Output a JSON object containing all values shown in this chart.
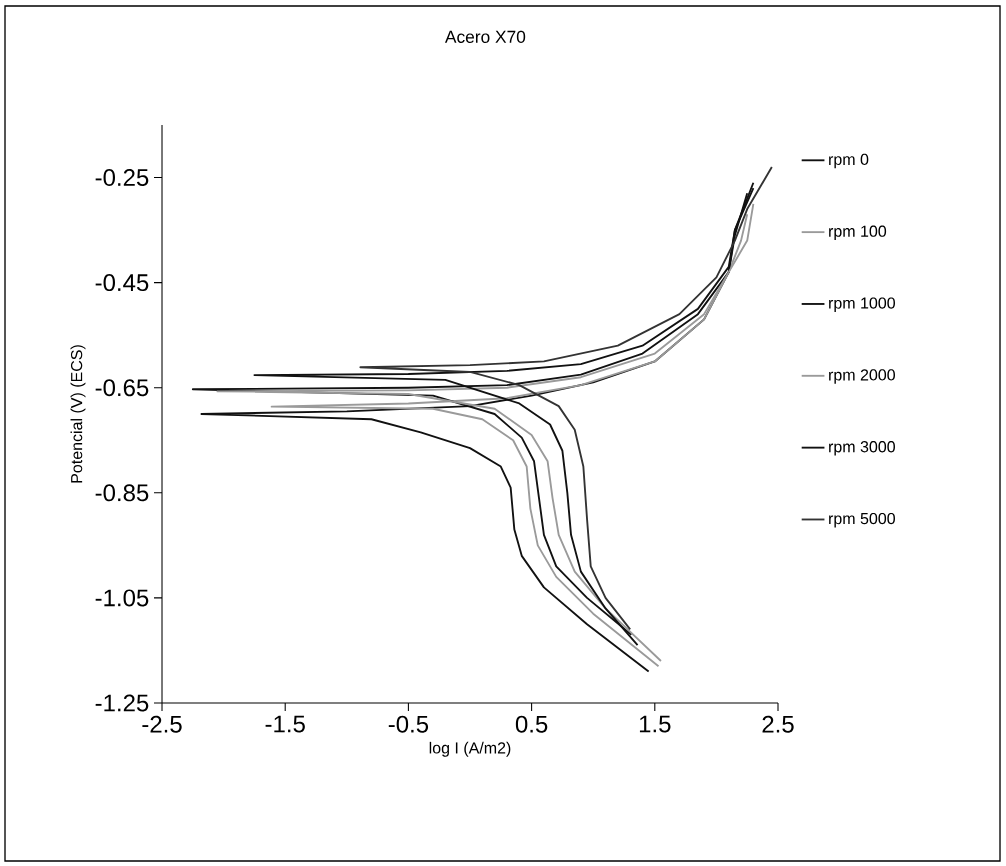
{
  "chart_data": {
    "type": "line",
    "title": "Acero X70",
    "xlabel": "log I (A/m2)",
    "ylabel": "Potencial (V) (ECS)",
    "xlim": [
      -2.5,
      2.5
    ],
    "ylim": [
      -1.25,
      -0.15
    ],
    "xticks": [
      -2.5,
      -1.5,
      -0.5,
      0.5,
      1.5,
      2.5
    ],
    "yticks": [
      -1.25,
      -1.05,
      -0.85,
      -0.65,
      -0.45,
      -0.25
    ],
    "legend": "right",
    "marker": "none",
    "line_style": "solid",
    "series": [
      {
        "name": "rpm 0",
        "color": "#111111",
        "x": [
          1.45,
          0.95,
          0.6,
          0.42,
          0.36,
          0.33,
          0.25,
          0.0,
          -0.4,
          -0.8,
          -2.18,
          -1.0,
          0.0,
          0.5,
          1.0,
          1.5,
          1.9,
          2.1,
          2.15,
          2.25
        ],
        "values": [
          -1.19,
          -1.1,
          -1.03,
          -0.97,
          -0.92,
          -0.84,
          -0.8,
          -0.765,
          -0.735,
          -0.71,
          -0.7,
          -0.695,
          -0.685,
          -0.665,
          -0.64,
          -0.6,
          -0.52,
          -0.43,
          -0.36,
          -0.28
        ]
      },
      {
        "name": "rpm 100",
        "color": "#9a9a9a",
        "x": [
          1.53,
          1.0,
          0.7,
          0.55,
          0.49,
          0.46,
          0.35,
          0.1,
          -0.3,
          -1.61,
          -0.5,
          0.3,
          0.9,
          1.5,
          1.9,
          2.1,
          2.2,
          2.25
        ],
        "values": [
          -1.18,
          -1.08,
          -1.01,
          -0.95,
          -0.88,
          -0.8,
          -0.75,
          -0.71,
          -0.69,
          -0.686,
          -0.68,
          -0.67,
          -0.645,
          -0.6,
          -0.52,
          -0.43,
          -0.37,
          -0.32
        ]
      },
      {
        "name": "rpm 1000",
        "color": "#111111",
        "x": [
          1.31,
          0.95,
          0.7,
          0.6,
          0.56,
          0.52,
          0.42,
          0.2,
          -0.3,
          -2.25,
          -0.5,
          0.3,
          0.9,
          1.4,
          1.85,
          2.1,
          2.15,
          2.3
        ],
        "values": [
          -1.12,
          -1.05,
          -0.99,
          -0.93,
          -0.86,
          -0.79,
          -0.745,
          -0.7,
          -0.665,
          -0.653,
          -0.65,
          -0.645,
          -0.625,
          -0.585,
          -0.51,
          -0.43,
          -0.35,
          -0.26
        ]
      },
      {
        "name": "rpm 2000",
        "color": "#9a9a9a",
        "x": [
          1.55,
          1.1,
          0.85,
          0.72,
          0.67,
          0.63,
          0.5,
          0.2,
          -0.5,
          -2.05,
          -0.5,
          0.3,
          0.9,
          1.5,
          1.9,
          2.1,
          2.25,
          2.3
        ],
        "values": [
          -1.17,
          -1.07,
          -1.0,
          -0.93,
          -0.86,
          -0.79,
          -0.74,
          -0.69,
          -0.662,
          -0.657,
          -0.655,
          -0.65,
          -0.63,
          -0.585,
          -0.51,
          -0.43,
          -0.37,
          -0.3
        ]
      },
      {
        "name": "rpm 3000",
        "color": "#111111",
        "x": [
          1.36,
          1.1,
          0.9,
          0.82,
          0.79,
          0.75,
          0.65,
          0.4,
          -0.2,
          -1.75,
          -0.5,
          0.3,
          0.9,
          1.4,
          1.85,
          2.1,
          2.15,
          2.3
        ],
        "values": [
          -1.14,
          -1.07,
          -1.0,
          -0.93,
          -0.85,
          -0.77,
          -0.72,
          -0.68,
          -0.635,
          -0.626,
          -0.624,
          -0.618,
          -0.605,
          -0.57,
          -0.5,
          -0.42,
          -0.35,
          -0.27
        ]
      },
      {
        "name": "rpm 5000",
        "color": "#333333",
        "x": [
          1.3,
          1.1,
          0.98,
          0.95,
          0.92,
          0.85,
          0.72,
          0.4,
          0.0,
          -0.89,
          0.0,
          0.6,
          1.2,
          1.7,
          2.0,
          2.15,
          2.25,
          2.45
        ],
        "values": [
          -1.11,
          -1.05,
          -0.99,
          -0.9,
          -0.8,
          -0.73,
          -0.685,
          -0.645,
          -0.62,
          -0.611,
          -0.607,
          -0.6,
          -0.57,
          -0.51,
          -0.44,
          -0.37,
          -0.31,
          -0.23
        ]
      }
    ]
  }
}
